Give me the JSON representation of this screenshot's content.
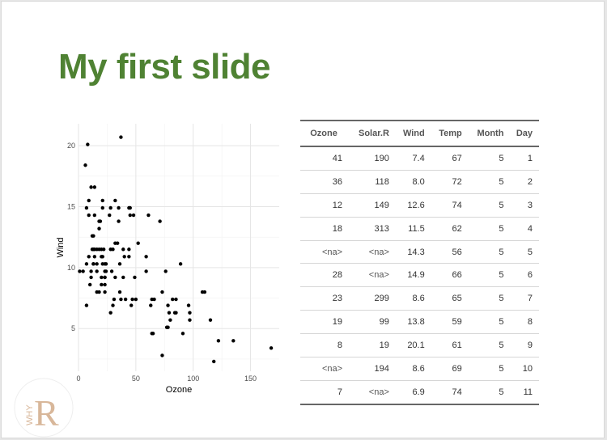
{
  "slide": {
    "title": "My first slide"
  },
  "chart_data": {
    "type": "scatter",
    "title": "",
    "xlabel": "Ozone",
    "ylabel": "Wind",
    "xlim": [
      0,
      175
    ],
    "ylim": [
      1.5,
      21.8
    ],
    "xticks": [
      0,
      50,
      100,
      150
    ],
    "yticks": [
      5,
      10,
      15,
      20
    ],
    "grid": true,
    "points": [
      [
        41,
        7.4
      ],
      [
        36,
        8.0
      ],
      [
        12,
        12.6
      ],
      [
        18,
        11.5
      ],
      [
        28,
        14.9
      ],
      [
        23,
        8.6
      ],
      [
        19,
        13.8
      ],
      [
        8,
        20.1
      ],
      [
        7,
        6.9
      ],
      [
        16,
        9.7
      ],
      [
        11,
        9.2
      ],
      [
        14,
        10.9
      ],
      [
        18,
        13.2
      ],
      [
        14,
        11.5
      ],
      [
        34,
        12.0
      ],
      [
        6,
        18.4
      ],
      [
        30,
        11.5
      ],
      [
        11,
        9.7
      ],
      [
        1,
        9.7
      ],
      [
        11,
        16.6
      ],
      [
        4,
        9.7
      ],
      [
        32,
        12.0
      ],
      [
        45,
        14.9
      ],
      [
        115,
        5.7
      ],
      [
        37,
        7.4
      ],
      [
        23,
        9.7
      ],
      [
        29,
        9.7
      ],
      [
        71,
        13.8
      ],
      [
        39,
        11.5
      ],
      [
        23,
        8.0
      ],
      [
        21,
        14.9
      ],
      [
        37,
        20.7
      ],
      [
        20,
        9.2
      ],
      [
        12,
        11.5
      ],
      [
        13,
        10.3
      ],
      [
        135,
        4.0
      ],
      [
        49,
        9.2
      ],
      [
        32,
        9.2
      ],
      [
        64,
        4.6
      ],
      [
        40,
        10.9
      ],
      [
        77,
        5.1
      ],
      [
        97,
        6.3
      ],
      [
        97,
        5.7
      ],
      [
        85,
        7.4
      ],
      [
        10,
        8.6
      ],
      [
        27,
        14.3
      ],
      [
        7,
        14.9
      ],
      [
        48,
        14.3
      ],
      [
        35,
        14.9
      ],
      [
        61,
        14.3
      ],
      [
        79,
        6.3
      ],
      [
        63,
        6.9
      ],
      [
        16,
        10.3
      ],
      [
        80,
        5.7
      ],
      [
        108,
        8.0
      ],
      [
        20,
        8.6
      ],
      [
        52,
        12.0
      ],
      [
        82,
        7.4
      ],
      [
        50,
        7.4
      ],
      [
        64,
        7.4
      ],
      [
        59,
        9.7
      ],
      [
        39,
        9.2
      ],
      [
        9,
        14.3
      ],
      [
        16,
        11.5
      ],
      [
        78,
        6.9
      ],
      [
        35,
        13.8
      ],
      [
        66,
        7.4
      ],
      [
        122,
        4.0
      ],
      [
        89,
        10.3
      ],
      [
        110,
        8.0
      ],
      [
        44,
        11.5
      ],
      [
        28,
        11.5
      ],
      [
        65,
        4.6
      ],
      [
        22,
        11.5
      ],
      [
        59,
        10.9
      ],
      [
        23,
        9.2
      ],
      [
        31,
        7.4
      ],
      [
        44,
        10.9
      ],
      [
        21,
        10.3
      ],
      [
        9,
        15.5
      ],
      [
        45,
        14.3
      ],
      [
        168,
        3.4
      ],
      [
        73,
        8.0
      ],
      [
        76,
        9.7
      ],
      [
        118,
        2.3
      ],
      [
        84,
        6.3
      ],
      [
        85,
        6.3
      ],
      [
        96,
        6.9
      ],
      [
        78,
        5.1
      ],
      [
        73,
        2.8
      ],
      [
        91,
        4.6
      ],
      [
        47,
        7.4
      ],
      [
        32,
        15.5
      ],
      [
        20,
        10.9
      ],
      [
        23,
        10.3
      ],
      [
        21,
        10.9
      ],
      [
        24,
        9.7
      ],
      [
        44,
        14.9
      ],
      [
        21,
        15.5
      ],
      [
        28,
        6.3
      ],
      [
        9,
        10.9
      ],
      [
        13,
        11.5
      ],
      [
        46,
        6.9
      ],
      [
        18,
        13.8
      ],
      [
        13,
        10.3
      ],
      [
        24,
        10.3
      ],
      [
        16,
        8.0
      ],
      [
        13,
        12.6
      ],
      [
        23,
        9.2
      ],
      [
        36,
        10.3
      ],
      [
        7,
        10.3
      ],
      [
        14,
        16.6
      ],
      [
        30,
        6.9
      ],
      [
        14,
        14.3
      ],
      [
        18,
        8.0
      ],
      [
        20,
        11.5
      ]
    ]
  },
  "table": {
    "columns": [
      "Ozone",
      "Solar.R",
      "Wind",
      "Temp",
      "Month",
      "Day"
    ],
    "rows": [
      [
        "41",
        "190",
        "7.4",
        "67",
        "5",
        "1"
      ],
      [
        "36",
        "118",
        "8.0",
        "72",
        "5",
        "2"
      ],
      [
        "12",
        "149",
        "12.6",
        "74",
        "5",
        "3"
      ],
      [
        "18",
        "313",
        "11.5",
        "62",
        "5",
        "4"
      ],
      [
        "<na>",
        "<na>",
        "14.3",
        "56",
        "5",
        "5"
      ],
      [
        "28",
        "<na>",
        "14.9",
        "66",
        "5",
        "6"
      ],
      [
        "23",
        "299",
        "8.6",
        "65",
        "5",
        "7"
      ],
      [
        "19",
        "99",
        "13.8",
        "59",
        "5",
        "8"
      ],
      [
        "8",
        "19",
        "20.1",
        "61",
        "5",
        "9"
      ],
      [
        "<na>",
        "194",
        "8.6",
        "69",
        "5",
        "10"
      ],
      [
        "7",
        "<na>",
        "6.9",
        "74",
        "5",
        "11"
      ]
    ]
  },
  "logo": {
    "text_side": "WHY",
    "text_main": "R"
  },
  "colors": {
    "title": "#4f8233",
    "points": "#000000",
    "grid": "#ebebeb",
    "logo": "#d8b79a"
  }
}
